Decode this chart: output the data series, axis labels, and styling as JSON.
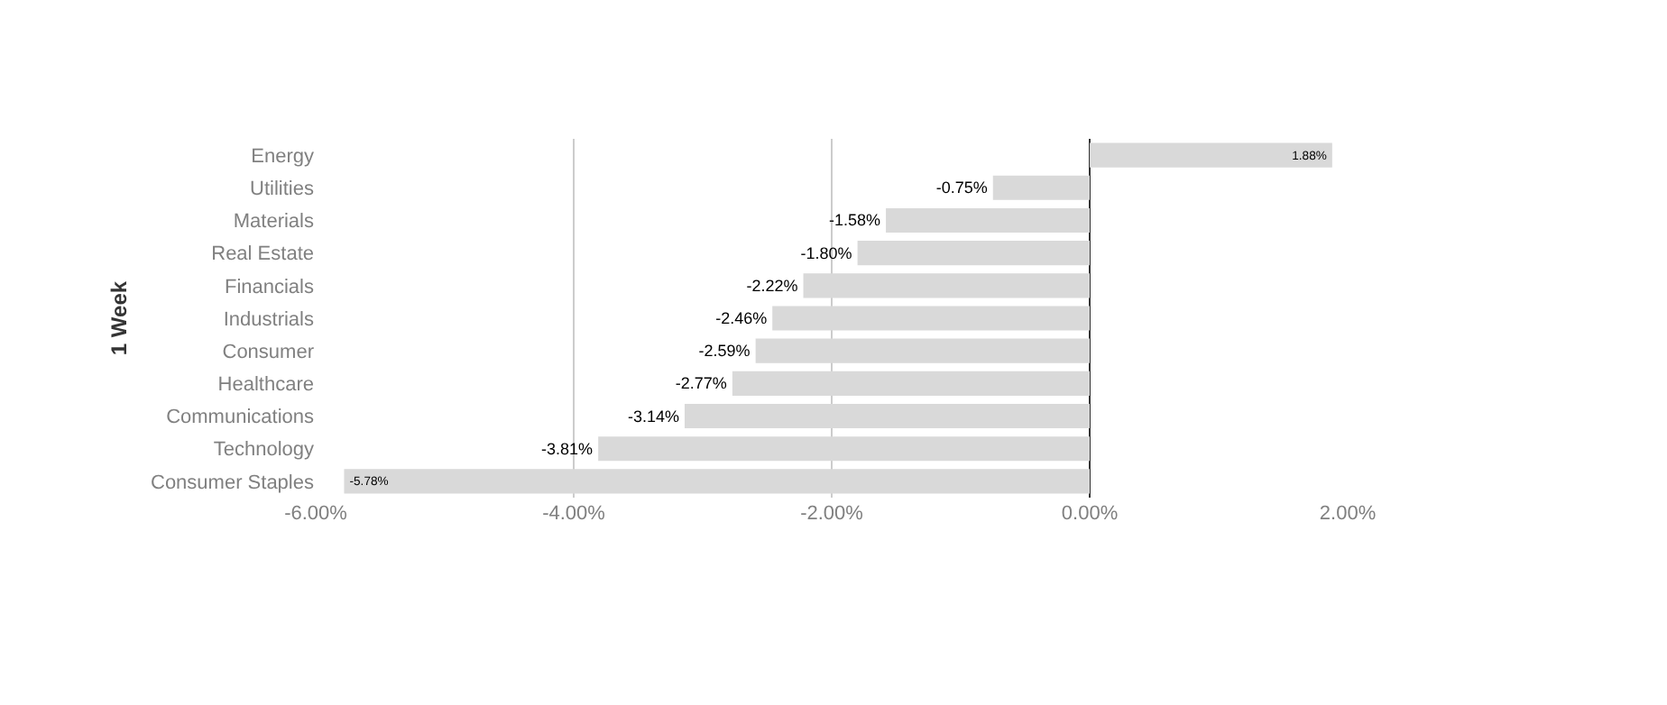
{
  "chart_data": {
    "type": "bar",
    "orientation": "horizontal",
    "ylabel": "1 Week",
    "categories": [
      "Energy",
      "Utilities",
      "Materials",
      "Real Estate",
      "Financials",
      "Industrials",
      "Consumer",
      "Healthcare",
      "Communications",
      "Technology",
      "Consumer Staples"
    ],
    "values": [
      1.88,
      -0.75,
      -1.58,
      -1.8,
      -2.22,
      -2.46,
      -2.59,
      -2.77,
      -3.14,
      -3.81,
      -5.78
    ],
    "value_labels": [
      "1.88%",
      "-0.75%",
      "-1.58%",
      "-1.80%",
      "-2.22%",
      "-2.46%",
      "-2.59%",
      "-2.77%",
      "-3.14%",
      "-3.81%",
      "-5.78%"
    ],
    "color": "#d9d9d9",
    "xlim": [
      -6,
      2
    ],
    "xticks": [
      {
        "value": -6,
        "label": "-6.00%"
      },
      {
        "value": -4,
        "label": "-4.00%"
      },
      {
        "value": -2,
        "label": "-2.00%"
      },
      {
        "value": 0,
        "label": "0.00%"
      },
      {
        "value": 2,
        "label": "2.00%"
      }
    ],
    "grid": "x"
  }
}
